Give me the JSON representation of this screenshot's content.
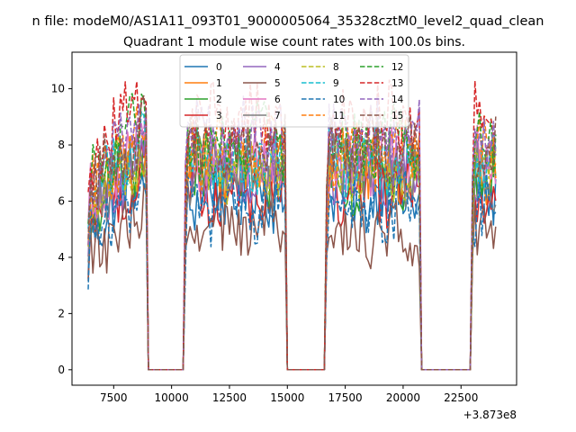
{
  "chart_data": {
    "type": "line",
    "suptitle": "n file: modeM0/AS1A11_093T01_9000005064_35328cztM0_level2_quad_clean",
    "title": "Quadrant 1 module wise count rates with 100.0s bins.",
    "xlabel": "",
    "ylabel": "",
    "x_offset_label": "+3.873e8",
    "xlim": [
      5700,
      24900
    ],
    "ylim": [
      -0.55,
      11.3
    ],
    "xticks": [
      7500,
      10000,
      12500,
      15000,
      17500,
      20000,
      22500
    ],
    "xtick_labels": [
      "7500",
      "10000",
      "12500",
      "15000",
      "17500",
      "20000",
      "22500"
    ],
    "yticks": [
      0,
      2,
      4,
      6,
      8,
      10
    ],
    "ytick_labels": [
      "0",
      "2",
      "4",
      "6",
      "8",
      "10"
    ],
    "grid": false,
    "legend_placement": "top-center",
    "legend_columns": 4,
    "segments": [
      {
        "start": 6400,
        "end": 8900,
        "shape": "rise"
      },
      {
        "start": 10600,
        "end": 14900,
        "shape": "flat"
      },
      {
        "start": 16700,
        "end": 20700,
        "shape": "flat"
      },
      {
        "start": 23000,
        "end": 24000,
        "shape": "flat"
      }
    ],
    "gaps": [
      {
        "start": 9100,
        "end": 10400
      },
      {
        "start": 15000,
        "end": 16600
      },
      {
        "start": 20800,
        "end": 22900
      }
    ],
    "series": [
      {
        "name": "0",
        "color": "#1f77b4",
        "dash": "solid",
        "level": 6.2
      },
      {
        "name": "1",
        "color": "#ff7f0e",
        "dash": "solid",
        "level": 7.2
      },
      {
        "name": "2",
        "color": "#2ca02c",
        "dash": "solid",
        "level": 6.9
      },
      {
        "name": "3",
        "color": "#d62728",
        "dash": "solid",
        "level": 6.4
      },
      {
        "name": "4",
        "color": "#9467bd",
        "dash": "solid",
        "level": 7.0
      },
      {
        "name": "5",
        "color": "#8c564b",
        "dash": "solid",
        "level": 4.9
      },
      {
        "name": "6",
        "color": "#e377c2",
        "dash": "solid",
        "level": 7.3
      },
      {
        "name": "7",
        "color": "#7f7f7f",
        "dash": "solid",
        "level": 7.1
      },
      {
        "name": "8",
        "color": "#bcbd22",
        "dash": "dashed",
        "level": 7.2
      },
      {
        "name": "9",
        "color": "#17becf",
        "dash": "dashed",
        "level": 7.4
      },
      {
        "name": "10",
        "color": "#1f77b4",
        "dash": "dashed",
        "level": 5.7
      },
      {
        "name": "11",
        "color": "#ff7f0e",
        "dash": "dashed",
        "level": 7.8
      },
      {
        "name": "12",
        "color": "#2ca02c",
        "dash": "dashed",
        "level": 8.1
      },
      {
        "name": "13",
        "color": "#d62728",
        "dash": "dashed",
        "level": 8.9
      },
      {
        "name": "14",
        "color": "#9467bd",
        "dash": "dashed",
        "level": 8.3
      },
      {
        "name": "15",
        "color": "#8c564b",
        "dash": "dashed",
        "level": 7.7
      }
    ]
  }
}
